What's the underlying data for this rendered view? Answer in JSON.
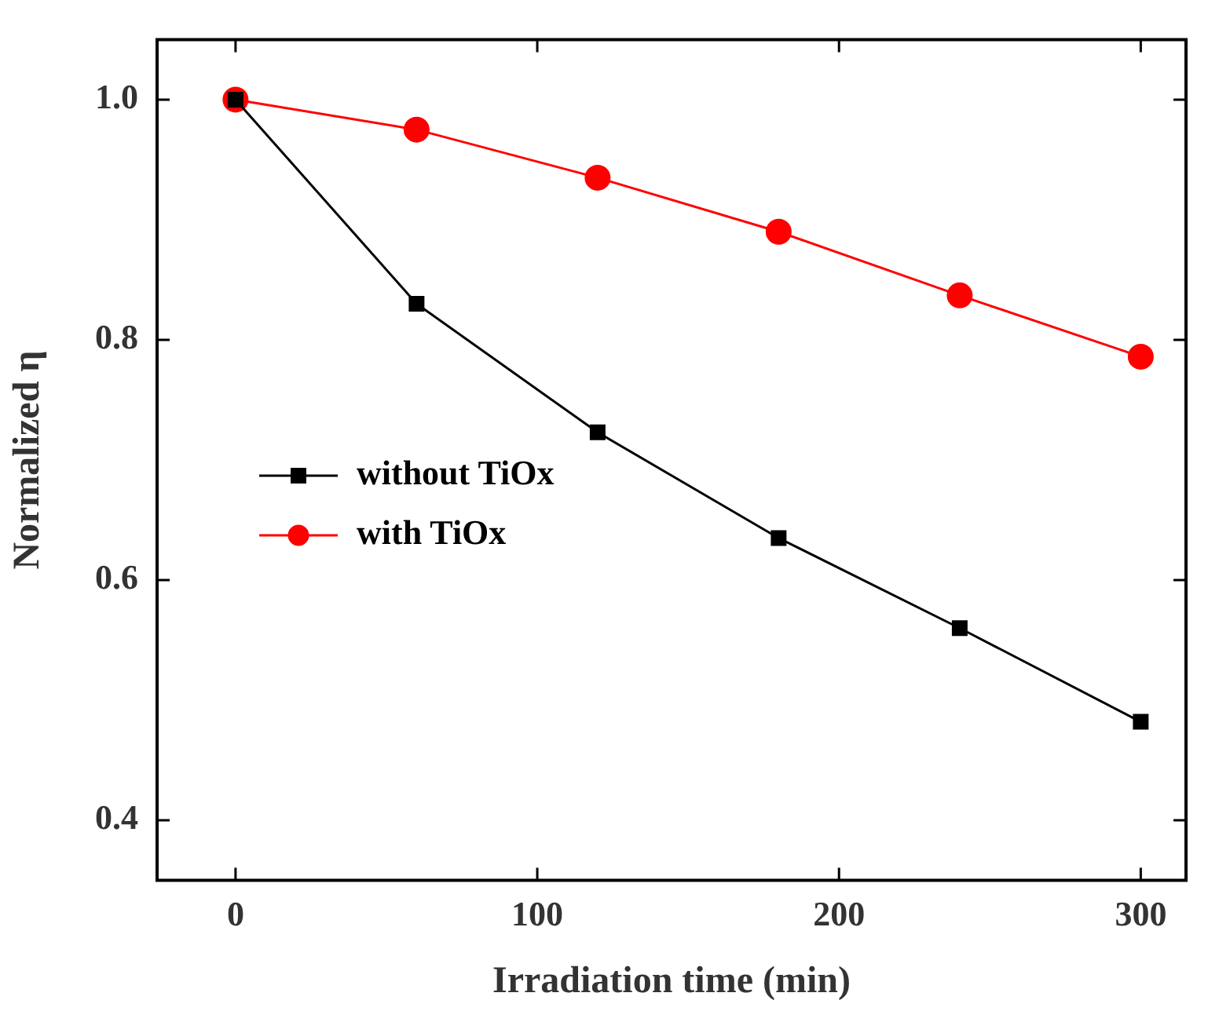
{
  "chart_data": {
    "type": "line",
    "xlabel": "Irradiation time (min)",
    "ylabel": "Normalized η",
    "x": [
      0,
      60,
      120,
      180,
      240,
      300
    ],
    "series": [
      {
        "name": "without TiOx",
        "color": "#000000",
        "marker": "square",
        "values": [
          1.0,
          0.83,
          0.723,
          0.635,
          0.56,
          0.482
        ]
      },
      {
        "name": "with TiOx",
        "color": "#ff0000",
        "marker": "circle",
        "values": [
          1.0,
          0.975,
          0.935,
          0.89,
          0.837,
          0.786
        ]
      }
    ],
    "xlim": [
      -26,
      315
    ],
    "xticks": [
      0,
      100,
      200,
      300
    ],
    "ylim": [
      0.35,
      1.05
    ],
    "yticks": [
      {
        "value": 0.4,
        "label": "0.4"
      },
      {
        "value": 0.6,
        "label": "0.6"
      },
      {
        "value": 0.8,
        "label": "0.8"
      },
      {
        "value": 1.0,
        "label": "1.0"
      }
    ],
    "grid": false,
    "legend": "left"
  }
}
